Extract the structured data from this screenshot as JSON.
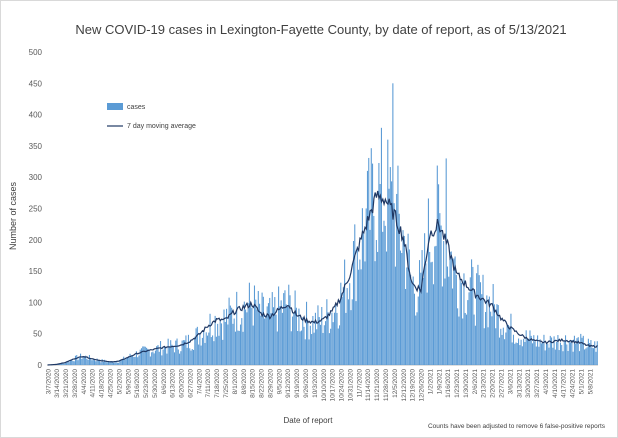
{
  "chart_data": {
    "type": "bar",
    "title": "New COVID-19 cases in Lexington-Fayette County, by date of report, as of 5/13/2021",
    "xlabel": "Date of report",
    "ylabel": "Number of cases",
    "ylim": [
      0,
      500
    ],
    "yticks": [
      "0",
      "50",
      "100",
      "150",
      "200",
      "250",
      "300",
      "350",
      "400",
      "450",
      "500"
    ],
    "grid": false,
    "legend_position": "upper-left",
    "footnote": "Counts have been adjusted to remove 6 false-positive reports",
    "colors": {
      "bars": "#5b9bd5",
      "line": "#1f3864"
    },
    "series": [
      {
        "name": "cases",
        "type": "bar"
      },
      {
        "name": "7 day moving average",
        "type": "line"
      }
    ],
    "categories": [
      "3/7/2020",
      "3/14/2020",
      "3/21/2020",
      "3/28/2020",
      "4/4/2020",
      "4/11/2020",
      "4/18/2020",
      "4/25/2020",
      "5/2/2020",
      "5/9/2020",
      "5/16/2020",
      "5/23/2020",
      "5/30/2020",
      "6/6/2020",
      "6/13/2020",
      "6/20/2020",
      "6/27/2020",
      "7/4/2020",
      "7/11/2020",
      "7/18/2020",
      "7/25/2020",
      "8/1/2020",
      "8/8/2020",
      "8/15/2020",
      "8/22/2020",
      "8/29/2020",
      "9/5/2020",
      "9/12/2020",
      "9/19/2020",
      "9/26/2020",
      "10/3/2020",
      "10/10/2020",
      "10/17/2020",
      "10/24/2020",
      "10/31/2020",
      "11/7/2020",
      "11/14/2020",
      "11/21/2020",
      "11/28/2020",
      "12/5/2020",
      "12/12/2020",
      "12/19/2020",
      "12/26/2020",
      "1/2/2021",
      "1/9/2021",
      "1/16/2021",
      "1/23/2021",
      "1/30/2021",
      "2/6/2021",
      "2/13/2021",
      "2/20/2021",
      "2/27/2021",
      "3/6/2021",
      "3/13/2021",
      "3/20/2021",
      "3/27/2021",
      "4/3/2021",
      "4/10/2021",
      "4/17/2021",
      "4/24/2021",
      "5/1/2021",
      "5/8/2021"
    ],
    "weekly_moving_average": [
      0,
      1,
      4,
      10,
      14,
      10,
      7,
      5,
      6,
      12,
      18,
      22,
      25,
      28,
      30,
      32,
      38,
      48,
      62,
      72,
      72,
      85,
      92,
      98,
      82,
      78,
      88,
      98,
      80,
      72,
      68,
      72,
      85,
      108,
      145,
      190,
      230,
      270,
      265,
      240,
      205,
      130,
      120,
      210,
      225,
      190,
      145,
      130,
      115,
      105,
      95,
      75,
      60,
      50,
      42,
      38,
      36,
      38,
      40,
      38,
      35,
      30
    ],
    "daily_peaks_annotated": [
      {
        "date": "12/4/2020",
        "value": 450
      },
      {
        "date": "1/15/2021",
        "value": 330
      }
    ]
  }
}
